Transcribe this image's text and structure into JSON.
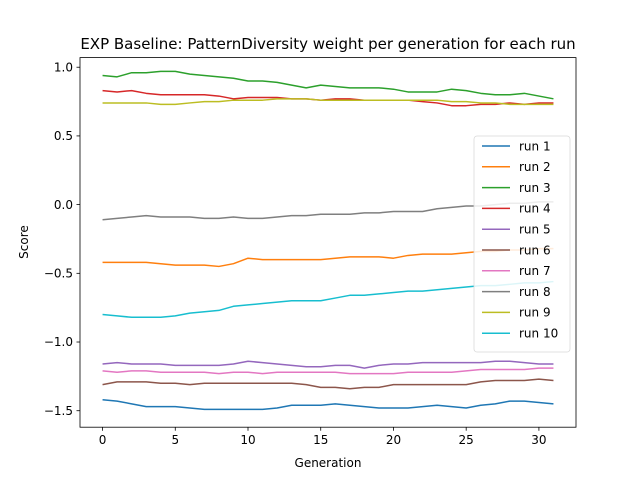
{
  "chart_data": {
    "type": "line",
    "title": "EXP Baseline: PatternDiversity weight per generation for each run",
    "xlabel": "Generation",
    "ylabel": "Score",
    "xlim": [
      -1.55,
      32.55
    ],
    "ylim": [
      -1.62,
      1.07
    ],
    "xticks": [
      0,
      5,
      10,
      15,
      20,
      25,
      30
    ],
    "yticks": [
      -1.5,
      -1.0,
      -0.5,
      0.0,
      0.5,
      1.0
    ],
    "ytick_labels": [
      "−1.5",
      "−1.0",
      "−0.5",
      "0.0",
      "0.5",
      "1.0"
    ],
    "legend_position": "center-right",
    "grid": false,
    "x": [
      0,
      1,
      2,
      3,
      4,
      5,
      6,
      7,
      8,
      9,
      10,
      11,
      12,
      13,
      14,
      15,
      16,
      17,
      18,
      19,
      20,
      21,
      22,
      23,
      24,
      25,
      26,
      27,
      28,
      29,
      30,
      31
    ],
    "series": [
      {
        "name": "run 1",
        "color": "#1f77b4",
        "values": [
          -1.42,
          -1.43,
          -1.45,
          -1.47,
          -1.47,
          -1.47,
          -1.48,
          -1.49,
          -1.49,
          -1.49,
          -1.49,
          -1.49,
          -1.48,
          -1.46,
          -1.46,
          -1.46,
          -1.45,
          -1.46,
          -1.47,
          -1.48,
          -1.48,
          -1.48,
          -1.47,
          -1.46,
          -1.47,
          -1.48,
          -1.46,
          -1.45,
          -1.43,
          -1.43,
          -1.44,
          -1.45
        ]
      },
      {
        "name": "run 2",
        "color": "#ff7f0e",
        "values": [
          -0.42,
          -0.42,
          -0.42,
          -0.42,
          -0.43,
          -0.44,
          -0.44,
          -0.44,
          -0.45,
          -0.43,
          -0.39,
          -0.4,
          -0.4,
          -0.4,
          -0.4,
          -0.4,
          -0.39,
          -0.38,
          -0.38,
          -0.38,
          -0.39,
          -0.37,
          -0.36,
          -0.36,
          -0.36,
          -0.35,
          -0.34,
          -0.34,
          -0.33,
          -0.33,
          -0.32,
          -0.32
        ]
      },
      {
        "name": "run 3",
        "color": "#2ca02c",
        "values": [
          0.94,
          0.93,
          0.96,
          0.96,
          0.97,
          0.97,
          0.95,
          0.94,
          0.93,
          0.92,
          0.9,
          0.9,
          0.89,
          0.87,
          0.85,
          0.87,
          0.86,
          0.85,
          0.85,
          0.85,
          0.84,
          0.82,
          0.82,
          0.82,
          0.84,
          0.83,
          0.81,
          0.8,
          0.8,
          0.81,
          0.79,
          0.77
        ]
      },
      {
        "name": "run 4",
        "color": "#d62728",
        "values": [
          0.83,
          0.82,
          0.83,
          0.81,
          0.8,
          0.8,
          0.8,
          0.8,
          0.79,
          0.77,
          0.78,
          0.78,
          0.78,
          0.77,
          0.77,
          0.76,
          0.77,
          0.77,
          0.76,
          0.76,
          0.76,
          0.76,
          0.75,
          0.74,
          0.72,
          0.72,
          0.73,
          0.73,
          0.74,
          0.73,
          0.74,
          0.74
        ]
      },
      {
        "name": "run 5",
        "color": "#9467bd",
        "values": [
          -1.16,
          -1.15,
          -1.16,
          -1.16,
          -1.16,
          -1.17,
          -1.17,
          -1.17,
          -1.17,
          -1.16,
          -1.14,
          -1.15,
          -1.16,
          -1.17,
          -1.18,
          -1.18,
          -1.17,
          -1.17,
          -1.19,
          -1.17,
          -1.16,
          -1.16,
          -1.15,
          -1.15,
          -1.15,
          -1.15,
          -1.15,
          -1.14,
          -1.14,
          -1.15,
          -1.16,
          -1.16
        ]
      },
      {
        "name": "run 6",
        "color": "#8c564b",
        "values": [
          -1.31,
          -1.29,
          -1.29,
          -1.29,
          -1.3,
          -1.3,
          -1.31,
          -1.3,
          -1.3,
          -1.3,
          -1.3,
          -1.3,
          -1.3,
          -1.3,
          -1.31,
          -1.33,
          -1.33,
          -1.34,
          -1.33,
          -1.33,
          -1.31,
          -1.31,
          -1.31,
          -1.31,
          -1.31,
          -1.31,
          -1.29,
          -1.28,
          -1.28,
          -1.28,
          -1.27,
          -1.28
        ]
      },
      {
        "name": "run 7",
        "color": "#e377c2",
        "values": [
          -1.21,
          -1.22,
          -1.21,
          -1.21,
          -1.22,
          -1.22,
          -1.22,
          -1.22,
          -1.23,
          -1.22,
          -1.22,
          -1.23,
          -1.22,
          -1.22,
          -1.22,
          -1.22,
          -1.22,
          -1.23,
          -1.23,
          -1.23,
          -1.23,
          -1.22,
          -1.22,
          -1.22,
          -1.22,
          -1.21,
          -1.2,
          -1.2,
          -1.2,
          -1.2,
          -1.19,
          -1.19
        ]
      },
      {
        "name": "run 8",
        "color": "#7f7f7f",
        "values": [
          -0.11,
          -0.1,
          -0.09,
          -0.08,
          -0.09,
          -0.09,
          -0.09,
          -0.1,
          -0.1,
          -0.09,
          -0.1,
          -0.1,
          -0.09,
          -0.08,
          -0.08,
          -0.07,
          -0.07,
          -0.07,
          -0.06,
          -0.06,
          -0.05,
          -0.05,
          -0.05,
          -0.03,
          -0.02,
          -0.01,
          -0.01,
          0.0,
          0.01,
          0.01,
          0.02,
          0.02
        ]
      },
      {
        "name": "run 9",
        "color": "#bcbd22",
        "values": [
          0.74,
          0.74,
          0.74,
          0.74,
          0.73,
          0.73,
          0.74,
          0.75,
          0.75,
          0.76,
          0.76,
          0.76,
          0.77,
          0.77,
          0.77,
          0.76,
          0.76,
          0.76,
          0.76,
          0.76,
          0.76,
          0.76,
          0.76,
          0.76,
          0.75,
          0.75,
          0.74,
          0.74,
          0.73,
          0.73,
          0.73,
          0.73
        ]
      },
      {
        "name": "run 10",
        "color": "#17becf",
        "values": [
          -0.8,
          -0.81,
          -0.82,
          -0.82,
          -0.82,
          -0.81,
          -0.79,
          -0.78,
          -0.77,
          -0.74,
          -0.73,
          -0.72,
          -0.71,
          -0.7,
          -0.7,
          -0.7,
          -0.68,
          -0.66,
          -0.66,
          -0.65,
          -0.64,
          -0.63,
          -0.63,
          -0.62,
          -0.61,
          -0.6,
          -0.59,
          -0.59,
          -0.58,
          -0.57,
          -0.57,
          -0.56
        ]
      }
    ]
  }
}
